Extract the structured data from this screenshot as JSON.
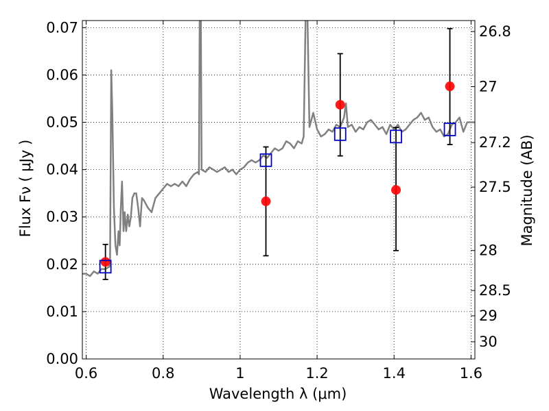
{
  "chart_data": {
    "type": "scatter",
    "xlabel": "Wavelength  λ (μm)",
    "ylabel": "Flux  Fν  ( μJy )",
    "y2label": "Magnitude (AB)",
    "xlim": [
      0.59,
      1.61
    ],
    "ylim": [
      0.0,
      0.0715
    ],
    "grid": true,
    "xticks": [
      0.6,
      0.8,
      1.0,
      1.2,
      1.4,
      1.6
    ],
    "xtick_labels": [
      "0.6",
      "0.8",
      "1",
      "1.2",
      "1.4",
      "1.6"
    ],
    "yticks": [
      0.0,
      0.01,
      0.02,
      0.03,
      0.04,
      0.05,
      0.06,
      0.07
    ],
    "ytick_labels": [
      "0.00",
      "0.01",
      "0.02",
      "0.03",
      "0.04",
      "0.05",
      "0.06",
      "0.07"
    ],
    "y2ticks": [
      {
        "flux": 0.00363,
        "label": "30"
      },
      {
        "flux": 0.00912,
        "label": "29"
      },
      {
        "flux": 0.01446,
        "label": "28.5"
      },
      {
        "flux": 0.02291,
        "label": "28"
      },
      {
        "flux": 0.03631,
        "label": "27.5"
      },
      {
        "flux": 0.04571,
        "label": "27.2"
      },
      {
        "flux": 0.05754,
        "label": "27"
      },
      {
        "flux": 0.06918,
        "label": "26.8"
      }
    ],
    "series": [
      {
        "kind": "spectrum",
        "color": "#808080",
        "points": [
          [
            0.59,
            0.018
          ],
          [
            0.6,
            0.018
          ],
          [
            0.61,
            0.0175
          ],
          [
            0.62,
            0.0185
          ],
          [
            0.63,
            0.018
          ],
          [
            0.64,
            0.019
          ],
          [
            0.65,
            0.019
          ],
          [
            0.66,
            0.0195
          ],
          [
            0.662,
            0.021
          ],
          [
            0.665,
            0.061
          ],
          [
            0.668,
            0.052
          ],
          [
            0.672,
            0.032
          ],
          [
            0.676,
            0.024
          ],
          [
            0.68,
            0.022
          ],
          [
            0.684,
            0.027
          ],
          [
            0.687,
            0.024
          ],
          [
            0.69,
            0.032
          ],
          [
            0.693,
            0.0375
          ],
          [
            0.697,
            0.027
          ],
          [
            0.7,
            0.031
          ],
          [
            0.704,
            0.027
          ],
          [
            0.708,
            0.0305
          ],
          [
            0.712,
            0.028
          ],
          [
            0.716,
            0.03
          ],
          [
            0.72,
            0.034
          ],
          [
            0.725,
            0.035
          ],
          [
            0.73,
            0.035
          ],
          [
            0.735,
            0.032
          ],
          [
            0.74,
            0.028
          ],
          [
            0.745,
            0.034
          ],
          [
            0.75,
            0.0335
          ],
          [
            0.76,
            0.032
          ],
          [
            0.77,
            0.031
          ],
          [
            0.78,
            0.034
          ],
          [
            0.79,
            0.035
          ],
          [
            0.8,
            0.036
          ],
          [
            0.81,
            0.037
          ],
          [
            0.82,
            0.0365
          ],
          [
            0.83,
            0.037
          ],
          [
            0.84,
            0.0365
          ],
          [
            0.85,
            0.0375
          ],
          [
            0.86,
            0.0365
          ],
          [
            0.87,
            0.038
          ],
          [
            0.88,
            0.039
          ],
          [
            0.89,
            0.0395
          ],
          [
            0.893,
            0.039
          ],
          [
            0.895,
            0.072
          ],
          [
            0.898,
            0.072
          ],
          [
            0.9,
            0.04
          ],
          [
            0.91,
            0.0395
          ],
          [
            0.92,
            0.0405
          ],
          [
            0.93,
            0.04
          ],
          [
            0.94,
            0.0395
          ],
          [
            0.95,
            0.04
          ],
          [
            0.96,
            0.0405
          ],
          [
            0.97,
            0.0395
          ],
          [
            0.98,
            0.04
          ],
          [
            0.99,
            0.039
          ],
          [
            1.0,
            0.04
          ],
          [
            1.01,
            0.0405
          ],
          [
            1.02,
            0.0415
          ],
          [
            1.03,
            0.042
          ],
          [
            1.04,
            0.0415
          ],
          [
            1.05,
            0.042
          ],
          [
            1.06,
            0.043
          ],
          [
            1.07,
            0.0425
          ],
          [
            1.08,
            0.0435
          ],
          [
            1.09,
            0.0445
          ],
          [
            1.1,
            0.044
          ],
          [
            1.11,
            0.0445
          ],
          [
            1.12,
            0.046
          ],
          [
            1.13,
            0.0455
          ],
          [
            1.14,
            0.0445
          ],
          [
            1.15,
            0.046
          ],
          [
            1.16,
            0.0455
          ],
          [
            1.165,
            0.047
          ],
          [
            1.17,
            0.072
          ],
          [
            1.175,
            0.072
          ],
          [
            1.18,
            0.049
          ],
          [
            1.19,
            0.052
          ],
          [
            1.2,
            0.0485
          ],
          [
            1.21,
            0.047
          ],
          [
            1.22,
            0.0475
          ],
          [
            1.23,
            0.0485
          ],
          [
            1.24,
            0.048
          ],
          [
            1.25,
            0.0495
          ],
          [
            1.26,
            0.049
          ],
          [
            1.27,
            0.051
          ],
          [
            1.275,
            0.054
          ],
          [
            1.28,
            0.049
          ],
          [
            1.29,
            0.0495
          ],
          [
            1.3,
            0.048
          ],
          [
            1.31,
            0.049
          ],
          [
            1.32,
            0.0485
          ],
          [
            1.33,
            0.05
          ],
          [
            1.34,
            0.0505
          ],
          [
            1.35,
            0.0495
          ],
          [
            1.36,
            0.0485
          ],
          [
            1.37,
            0.049
          ],
          [
            1.38,
            0.0475
          ],
          [
            1.39,
            0.0495
          ],
          [
            1.4,
            0.0485
          ],
          [
            1.41,
            0.0495
          ],
          [
            1.42,
            0.048
          ],
          [
            1.43,
            0.0485
          ],
          [
            1.44,
            0.0495
          ],
          [
            1.45,
            0.0505
          ],
          [
            1.46,
            0.051
          ],
          [
            1.47,
            0.052
          ],
          [
            1.48,
            0.0505
          ],
          [
            1.49,
            0.051
          ],
          [
            1.5,
            0.049
          ],
          [
            1.51,
            0.048
          ],
          [
            1.52,
            0.0485
          ],
          [
            1.53,
            0.047
          ],
          [
            1.54,
            0.0475
          ],
          [
            1.55,
            0.0495
          ],
          [
            1.56,
            0.05
          ],
          [
            1.57,
            0.051
          ],
          [
            1.58,
            0.048
          ],
          [
            1.59,
            0.05
          ],
          [
            1.6,
            0.05
          ],
          [
            1.61,
            0.05
          ]
        ]
      },
      {
        "kind": "observed",
        "color": "#ff0000",
        "points": [
          {
            "x": 0.65,
            "y": 0.0205,
            "err_hi": 0.0242,
            "err_lo": 0.0168
          },
          {
            "x": 1.067,
            "y": 0.0333,
            "err_hi": 0.0448,
            "err_lo": 0.0218
          },
          {
            "x": 1.26,
            "y": 0.0537,
            "err_hi": 0.0645,
            "err_lo": 0.0429
          },
          {
            "x": 1.405,
            "y": 0.0357,
            "err_hi": 0.0489,
            "err_lo": 0.0229
          },
          {
            "x": 1.545,
            "y": 0.0576,
            "err_hi": 0.0698,
            "err_lo": 0.0453
          }
        ]
      },
      {
        "kind": "model",
        "color": "#0000cc",
        "points": [
          {
            "x": 0.65,
            "y": 0.0195
          },
          {
            "x": 1.067,
            "y": 0.042
          },
          {
            "x": 1.26,
            "y": 0.0475
          },
          {
            "x": 1.405,
            "y": 0.047
          },
          {
            "x": 1.545,
            "y": 0.0485
          }
        ]
      }
    ]
  }
}
